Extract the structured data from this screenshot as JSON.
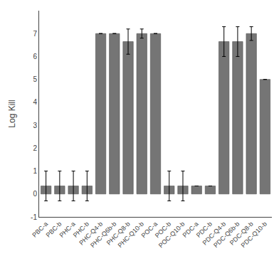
{
  "chart_data": {
    "type": "bar",
    "categories": [
      "PBC-a",
      "PBC-b",
      "PHC-a",
      "PHC-b",
      "PHC-Q4-b",
      "PHC-Q6b-b",
      "PHC-Q8-b",
      "PHC-Q10-b",
      "POC-a",
      "POC-b",
      "POC-Q10-b",
      "PDC-a",
      "PDC-b",
      "PDC-Q4-b",
      "PDC-Q6b-b",
      "PDC-Q8-b",
      "PDC-Q10-b"
    ],
    "values": [
      0.35,
      0.35,
      0.35,
      0.35,
      7.0,
      7.0,
      6.65,
      7.0,
      7.0,
      0.35,
      0.35,
      0.35,
      0.35,
      6.65,
      6.65,
      7.0,
      5.0
    ],
    "errors": [
      0.65,
      0.65,
      0.65,
      0.65,
      0.0,
      0.0,
      0.55,
      0.2,
      0.0,
      0.65,
      0.65,
      0.0,
      0.0,
      0.65,
      0.65,
      0.3,
      0.0
    ],
    "color": "#757575",
    "ylabel": "Log Kill",
    "ylim": [
      -1,
      8
    ],
    "yticks": [
      -1,
      0,
      1,
      2,
      3,
      4,
      5,
      6,
      7
    ],
    "grid": false
  }
}
